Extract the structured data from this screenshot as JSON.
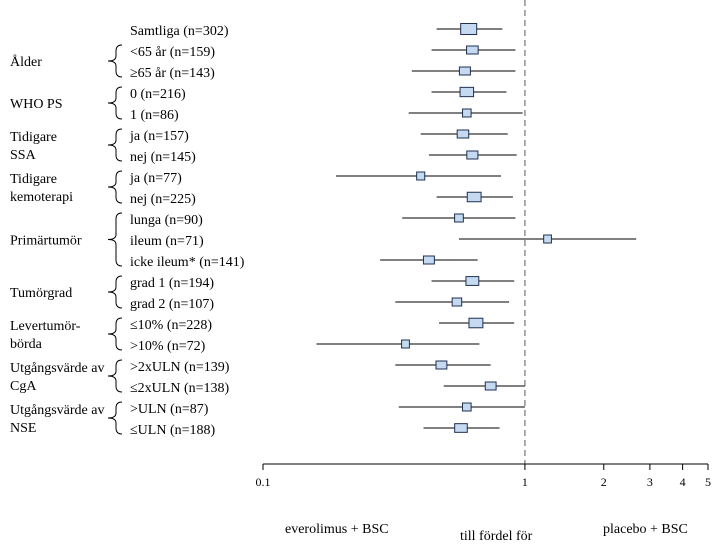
{
  "chart_data": {
    "type": "forest",
    "xscale": "log",
    "xlim": [
      0.1,
      5
    ],
    "xticks": [
      0.1,
      1,
      2,
      3,
      4,
      5
    ],
    "reference_line": 1,
    "rows": [
      {
        "label": "Samtliga (n=302)",
        "hr": 0.61,
        "lo": 0.46,
        "hi": 0.82,
        "weight": 302
      },
      {
        "label": "<65 år (n=159)",
        "hr": 0.63,
        "lo": 0.44,
        "hi": 0.92,
        "weight": 159
      },
      {
        "label": "≥65 år (n=143)",
        "hr": 0.59,
        "lo": 0.37,
        "hi": 0.92,
        "weight": 143
      },
      {
        "label": "0 (n=216)",
        "hr": 0.6,
        "lo": 0.44,
        "hi": 0.85,
        "weight": 216
      },
      {
        "label": "1 (n=86)",
        "hr": 0.6,
        "lo": 0.36,
        "hi": 0.98,
        "weight": 86
      },
      {
        "label": "ja (n=157)",
        "hr": 0.58,
        "lo": 0.4,
        "hi": 0.86,
        "weight": 157
      },
      {
        "label": "nej (n=145)",
        "hr": 0.63,
        "lo": 0.43,
        "hi": 0.93,
        "weight": 145
      },
      {
        "label": "ja (n=77)",
        "hr": 0.4,
        "lo": 0.19,
        "hi": 0.81,
        "weight": 77
      },
      {
        "label": "nej (n=225)",
        "hr": 0.64,
        "lo": 0.46,
        "hi": 0.9,
        "weight": 225
      },
      {
        "label": "lunga (n=90)",
        "hr": 0.56,
        "lo": 0.34,
        "hi": 0.92,
        "weight": 90
      },
      {
        "label": "ileum (n=71)",
        "hr": 1.22,
        "lo": 0.56,
        "hi": 2.66,
        "weight": 71
      },
      {
        "label": "icke ileum* (n=141)",
        "hr": 0.43,
        "lo": 0.28,
        "hi": 0.66,
        "weight": 141
      },
      {
        "label": "grad 1 (n=194)",
        "hr": 0.63,
        "lo": 0.44,
        "hi": 0.91,
        "weight": 194
      },
      {
        "label": "grad 2 (n=107)",
        "hr": 0.55,
        "lo": 0.32,
        "hi": 0.87,
        "weight": 107
      },
      {
        "label": "≤10% (n=228)",
        "hr": 0.65,
        "lo": 0.47,
        "hi": 0.91,
        "weight": 228
      },
      {
        "label": ">10% (n=72)",
        "hr": 0.35,
        "lo": 0.16,
        "hi": 0.67,
        "weight": 72
      },
      {
        "label": ">2xULN (n=139)",
        "hr": 0.48,
        "lo": 0.32,
        "hi": 0.74,
        "weight": 139
      },
      {
        "label": "≤2xULN (n=138)",
        "hr": 0.74,
        "lo": 0.49,
        "hi": 1.0,
        "weight": 138
      },
      {
        "label": ">ULN (n=87)",
        "hr": 0.6,
        "lo": 0.33,
        "hi": 1.0,
        "weight": 87
      },
      {
        "label": "≤ULN (n=188)",
        "hr": 0.57,
        "lo": 0.41,
        "hi": 0.8,
        "weight": 188
      }
    ],
    "groups": [
      {
        "label": "Ålder",
        "rows": [
          1,
          2
        ]
      },
      {
        "label": "WHO PS",
        "rows": [
          3,
          4
        ]
      },
      {
        "label": "Tidigare SSA",
        "rows": [
          5,
          6
        ]
      },
      {
        "label": "Tidigare kemoterapi",
        "rows": [
          7,
          8
        ]
      },
      {
        "label": "Primärtumör",
        "rows": [
          9,
          10,
          11
        ]
      },
      {
        "label": "Tumörgrad",
        "rows": [
          12,
          13
        ]
      },
      {
        "label": "Levertumör-börda",
        "rows": [
          14,
          15
        ]
      },
      {
        "label": "Utgångsvärde av CgA",
        "rows": [
          16,
          17
        ]
      },
      {
        "label": "Utgångsvärde av NSE",
        "rows": [
          18,
          19
        ]
      }
    ],
    "footer": {
      "left": "everolimus + BSC",
      "middle": "till fördel för",
      "right": "placebo + BSC"
    }
  },
  "colors": {
    "box_fill": "#c5d9f1",
    "box_stroke": "#1f3050",
    "ref_line": "#808080",
    "axis": "#000000"
  }
}
